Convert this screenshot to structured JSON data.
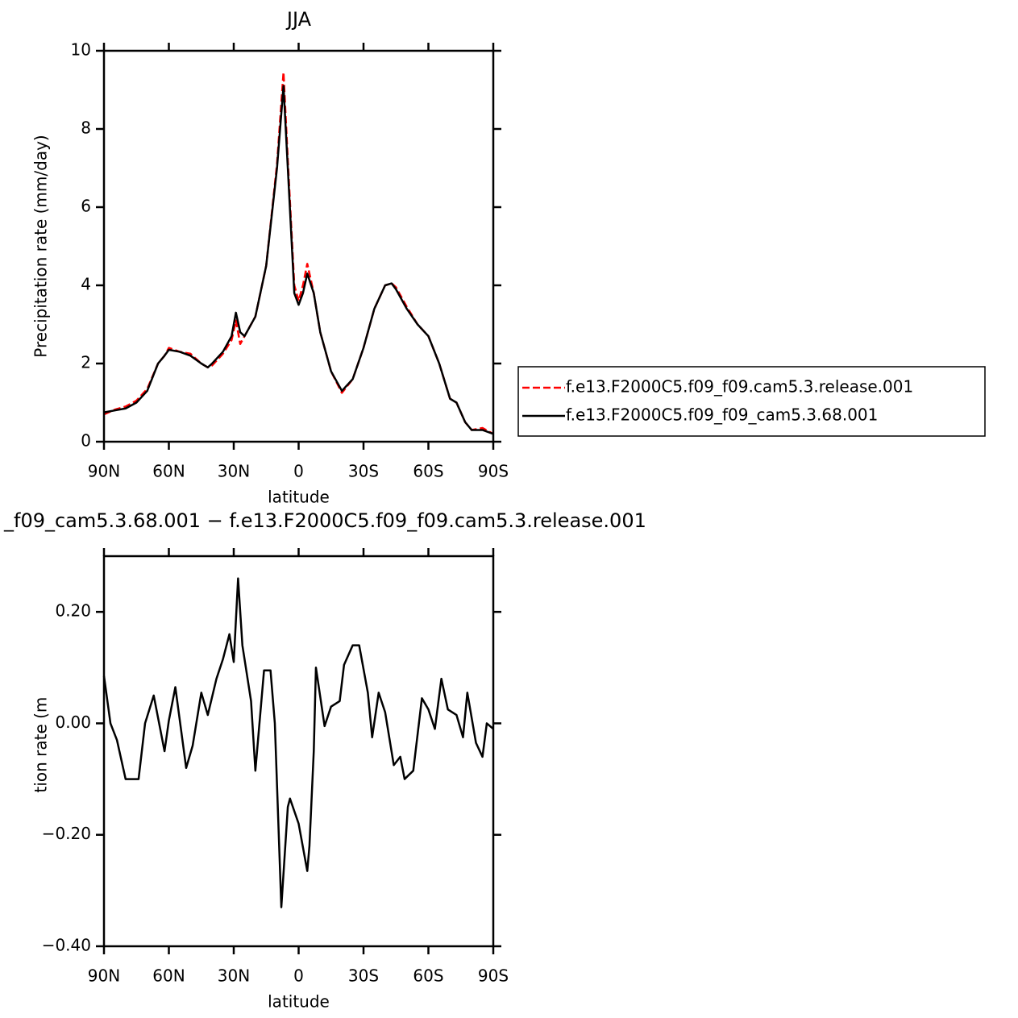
{
  "chart_data": [
    {
      "type": "line",
      "title": "JJA",
      "x_label": "latitude",
      "y_label": "Precipitation rate (mm/day)",
      "x": [
        90,
        85,
        80,
        75,
        70,
        65,
        62,
        60,
        55,
        50,
        45,
        42,
        40,
        35,
        31,
        29,
        27,
        25,
        20,
        15,
        10,
        7,
        5,
        2,
        0,
        -2,
        -4,
        -7,
        -10,
        -15,
        -20,
        -25,
        -30,
        -35,
        -40,
        -43,
        -45,
        -50,
        -55,
        -60,
        -65,
        -70,
        -73,
        -77,
        -80,
        -85,
        -90
      ],
      "series": [
        {
          "name": "f.e13.F2000C5.f09_f09.cam5.3.release.001",
          "color": "#ff0000",
          "dashed": true,
          "values": [
            0.7,
            0.82,
            0.9,
            1.05,
            1.35,
            2.0,
            2.2,
            2.4,
            2.3,
            2.25,
            2.0,
            1.9,
            1.95,
            2.25,
            2.6,
            3.1,
            2.5,
            2.7,
            3.2,
            4.5,
            7.1,
            9.45,
            7.2,
            4.0,
            3.6,
            4.0,
            4.55,
            3.8,
            2.8,
            1.8,
            1.25,
            1.6,
            2.4,
            3.4,
            4.0,
            4.05,
            3.95,
            3.45,
            3.0,
            2.7,
            2.0,
            1.1,
            1.0,
            0.5,
            0.3,
            0.35,
            0.2
          ]
        },
        {
          "name": "f.e13.F2000C5.f09_f09_cam5.3.68.001",
          "color": "#000000",
          "dashed": false,
          "values": [
            0.75,
            0.8,
            0.85,
            1.0,
            1.3,
            2.0,
            2.2,
            2.35,
            2.3,
            2.2,
            2.0,
            1.9,
            2.0,
            2.3,
            2.7,
            3.3,
            2.8,
            2.7,
            3.2,
            4.5,
            7.0,
            9.1,
            7.0,
            3.8,
            3.5,
            3.8,
            4.3,
            3.8,
            2.8,
            1.8,
            1.3,
            1.6,
            2.4,
            3.4,
            4.0,
            4.05,
            3.9,
            3.4,
            3.0,
            2.7,
            2.0,
            1.1,
            1.0,
            0.5,
            0.3,
            0.3,
            0.2
          ]
        }
      ],
      "xlim": [
        90,
        -90
      ],
      "xticks": [
        {
          "value": 90,
          "label": "90N"
        },
        {
          "value": 60,
          "label": "60N"
        },
        {
          "value": 30,
          "label": "30N"
        },
        0,
        {
          "value": -30,
          "label": "30S"
        },
        {
          "value": -60,
          "label": "60S"
        },
        {
          "value": -90,
          "label": "90S"
        }
      ],
      "ylim": [
        0,
        10
      ],
      "yticks": [
        0,
        2,
        4,
        6,
        8,
        10
      ],
      "legend": "right"
    },
    {
      "type": "line",
      "title": "_f09_cam5.3.68.001 − f.e13.F2000C5.f09_f09.cam5.3.release.001",
      "x_label": "latitude",
      "y_label": "Precipitation rate (mm/day)",
      "x": [
        90,
        87,
        84,
        80,
        77,
        74,
        71,
        67,
        62,
        60,
        57,
        52,
        49,
        45,
        42,
        38,
        35,
        32,
        30,
        28,
        26,
        22,
        20,
        16,
        13,
        11,
        8,
        5,
        4,
        0,
        -4,
        -5,
        -7,
        -8,
        -12,
        -15,
        -19,
        -21,
        -25,
        -28,
        -32,
        -34,
        -37,
        -40,
        -44,
        -47,
        -49,
        -53,
        -57,
        -60,
        -63,
        -66,
        -69,
        -73,
        -76,
        -78,
        -82,
        -85,
        -87,
        -90
      ],
      "series": [
        {
          "color": "#000000",
          "dashed": false,
          "values": [
            0.085,
            0.0,
            -0.03,
            -0.1,
            -0.1,
            -0.1,
            0.0,
            0.05,
            -0.05,
            0.005,
            0.065,
            -0.08,
            -0.04,
            0.055,
            0.015,
            0.08,
            0.115,
            0.16,
            0.11,
            0.26,
            0.14,
            0.04,
            -0.085,
            0.095,
            0.095,
            0.0,
            -0.33,
            -0.15,
            -0.135,
            -0.18,
            -0.265,
            -0.22,
            -0.05,
            0.1,
            -0.005,
            0.03,
            0.04,
            0.105,
            0.14,
            0.14,
            0.055,
            -0.025,
            0.055,
            0.02,
            -0.075,
            -0.06,
            -0.1,
            -0.085,
            0.045,
            0.025,
            -0.01,
            0.08,
            0.025,
            0.015,
            -0.025,
            0.055,
            -0.035,
            -0.06,
            0.0,
            -0.01
          ]
        }
      ],
      "xlim": [
        90,
        -90
      ],
      "xticks": [
        {
          "value": 90,
          "label": "90N"
        },
        {
          "value": 60,
          "label": "60N"
        },
        {
          "value": 30,
          "label": "30N"
        },
        0,
        {
          "value": -30,
          "label": "30S"
        },
        {
          "value": -60,
          "label": "60S"
        },
        {
          "value": -90,
          "label": "90S"
        }
      ],
      "ylim": [
        -0.4,
        0.3
      ],
      "yticks": [
        {
          "value": -0.4,
          "label": "−0.40"
        },
        {
          "value": -0.2,
          "label": "−0.20"
        },
        {
          "value": 0,
          "label": "0.00"
        },
        {
          "value": 0.2,
          "label": "0.20"
        }
      ]
    }
  ]
}
